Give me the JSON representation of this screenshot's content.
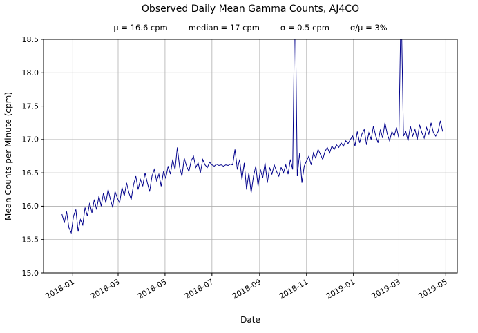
{
  "chart_data": {
    "type": "line",
    "title": "Observed Daily Mean Gamma Counts, AJ4CO",
    "stats": [
      "μ = 16.6 cpm",
      "median = 17 cpm",
      "σ = 0.5 cpm",
      "σ/μ = 3%"
    ],
    "xlabel": "Date",
    "ylabel": "Mean Counts per Minute (cpm)",
    "ylim": [
      15.0,
      18.5
    ],
    "x_domain": [
      "2017-11-24",
      "2019-05-16"
    ],
    "yticks": [
      "15.0",
      "15.5",
      "16.0",
      "16.5",
      "17.0",
      "17.5",
      "18.0",
      "18.5"
    ],
    "xticks": [
      {
        "label": "2018-01",
        "date": "2018-01-01"
      },
      {
        "label": "2018-03",
        "date": "2018-03-01"
      },
      {
        "label": "2018-05",
        "date": "2018-05-01"
      },
      {
        "label": "2018-07",
        "date": "2018-07-01"
      },
      {
        "label": "2018-09",
        "date": "2018-09-01"
      },
      {
        "label": "2018-11",
        "date": "2018-11-01"
      },
      {
        "label": "2019-01",
        "date": "2019-01-01"
      },
      {
        "label": "2019-03",
        "date": "2019-03-01"
      },
      {
        "label": "2019-05",
        "date": "2019-05-01"
      }
    ],
    "grid": true,
    "legend": false,
    "line_color": "#00008b",
    "series": [
      {
        "name": "daily mean gamma counts",
        "x_start": "2017-12-18",
        "x_step_days": 3,
        "y": [
          15.88,
          15.75,
          15.92,
          15.68,
          15.6,
          15.85,
          15.95,
          15.62,
          15.8,
          15.72,
          15.98,
          15.85,
          16.05,
          15.9,
          16.1,
          15.95,
          16.15,
          16.0,
          16.2,
          16.05,
          16.25,
          16.1,
          15.98,
          16.22,
          16.12,
          16.05,
          16.28,
          16.15,
          16.35,
          16.2,
          16.1,
          16.32,
          16.45,
          16.25,
          16.4,
          16.3,
          16.5,
          16.35,
          16.22,
          16.45,
          16.55,
          16.38,
          16.48,
          16.3,
          16.52,
          16.42,
          16.6,
          16.48,
          16.7,
          16.55,
          16.88,
          16.58,
          16.45,
          16.72,
          16.6,
          16.52,
          16.68,
          16.75,
          16.58,
          16.65,
          16.5,
          16.7,
          16.62,
          16.58,
          16.66,
          16.62,
          16.6,
          16.63,
          16.61,
          16.62,
          16.6,
          16.62,
          16.61,
          16.63,
          16.62,
          16.85,
          16.55,
          16.7,
          16.4,
          16.65,
          16.25,
          16.5,
          16.2,
          16.45,
          16.6,
          16.3,
          16.55,
          16.42,
          16.65,
          16.35,
          16.58,
          16.48,
          16.62,
          16.52,
          16.45,
          16.58,
          16.5,
          16.62,
          16.48,
          16.7,
          16.55,
          19.3,
          16.45,
          16.8,
          16.35,
          16.6,
          16.68,
          16.75,
          16.62,
          16.8,
          16.72,
          16.85,
          16.78,
          16.7,
          16.82,
          16.88,
          16.8,
          16.9,
          16.85,
          16.92,
          16.88,
          16.95,
          16.9,
          16.98,
          16.94,
          17.0,
          17.05,
          16.9,
          17.12,
          16.95,
          17.08,
          17.15,
          16.92,
          17.1,
          17.0,
          17.2,
          17.05,
          16.95,
          17.15,
          17.02,
          17.25,
          17.08,
          16.98,
          17.12,
          17.05,
          17.18,
          17.02,
          19.1,
          17.05,
          17.12,
          16.98,
          17.2,
          17.05,
          17.15,
          17.0,
          17.22,
          17.1,
          17.02,
          17.18,
          17.08,
          17.25,
          17.1,
          17.05,
          17.12,
          17.28,
          17.12
        ]
      }
    ]
  }
}
